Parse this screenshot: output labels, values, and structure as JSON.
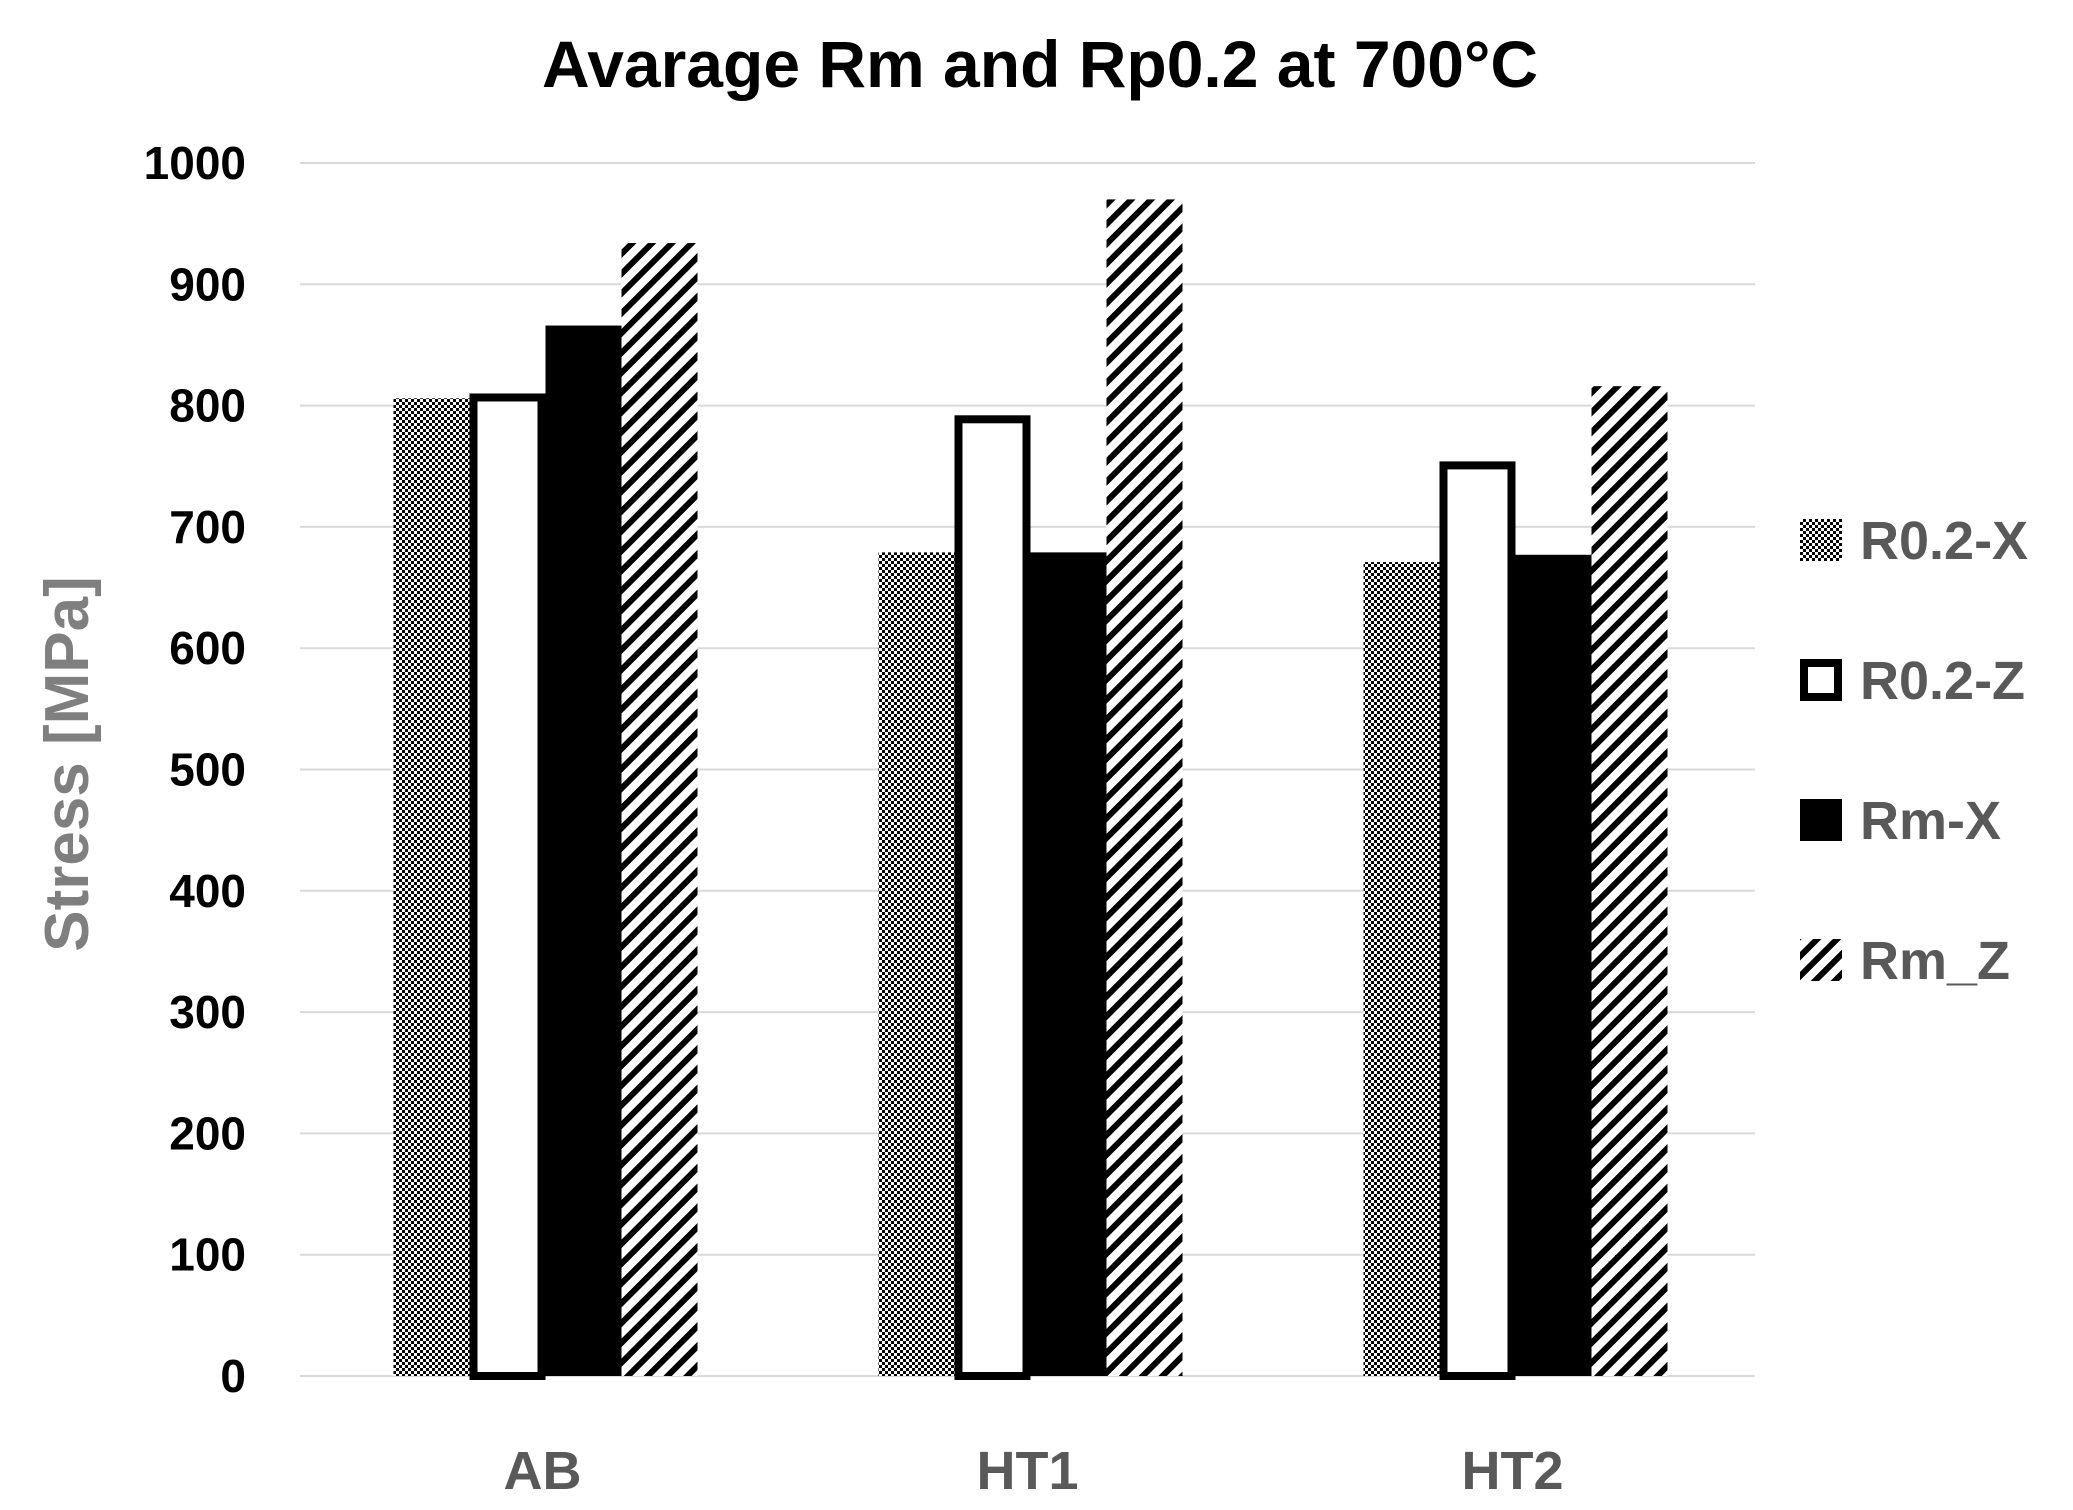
{
  "chart_data": {
    "type": "bar",
    "title": "Avarage Rm and Rp0.2 at 700°C",
    "xlabel": "",
    "ylabel": "Stress [MPa]",
    "ylim": [
      0,
      1000
    ],
    "yticks": [
      "0",
      "100",
      "200",
      "300",
      "400",
      "500",
      "600",
      "700",
      "800",
      "900",
      "1000"
    ],
    "categories": [
      "AB",
      "HT1",
      "HT2"
    ],
    "grid": true,
    "legend_position": "right",
    "series": [
      {
        "name": "R0.2-X",
        "pattern": "checker",
        "values": [
          806,
          679,
          671
        ]
      },
      {
        "name": "R0.2-Z",
        "pattern": "outline",
        "values": [
          810,
          792,
          754
        ]
      },
      {
        "name": "Rm-X",
        "pattern": "solid",
        "values": [
          866,
          679,
          677
        ]
      },
      {
        "name": "Rm_Z",
        "pattern": "diagonal",
        "values": [
          934,
          970,
          816
        ]
      }
    ],
    "colors": {
      "text": "#000000",
      "axis_label": "#7f7f7f",
      "category_label": "#595959",
      "grid": "#d9d9d9",
      "bar_dark": "#000000",
      "bar_light": "#ffffff"
    }
  }
}
